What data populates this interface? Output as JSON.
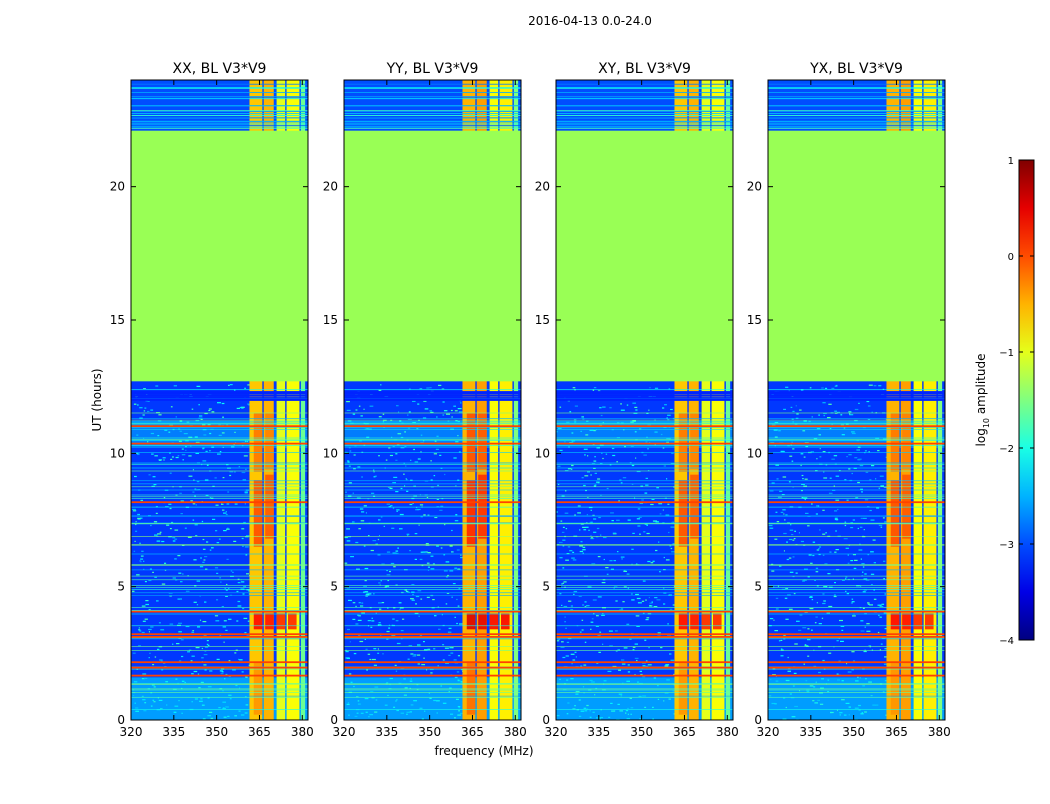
{
  "figure": {
    "suptitle": "2016-04-13 0.0-24.0",
    "xlabel": "frequency (MHz)",
    "ylabel": "UT (hours)"
  },
  "colors": {
    "flagged": "#99ff55",
    "background_noise": "#1a3cff",
    "rfi_strong": "#ff7a10"
  },
  "chart_data": {
    "type": "heatmap",
    "title": "2016-04-13 0.0-24.0",
    "xlabel": "frequency (MHz)",
    "ylabel": "UT (hours)",
    "xlim": [
      320,
      382
    ],
    "ylim": [
      0,
      24
    ],
    "xticks": [
      320,
      335,
      350,
      365,
      380
    ],
    "yticks": [
      0,
      5,
      10,
      15,
      20
    ],
    "panels": [
      {
        "title": "XX, BL V3*V9",
        "polarization": "XX"
      },
      {
        "title": "YY, BL V3*V9",
        "polarization": "YY"
      },
      {
        "title": "XY, BL V3*V9",
        "polarization": "XY"
      },
      {
        "title": "YX, BL V3*V9",
        "polarization": "YX"
      }
    ],
    "flagged_time_range": [
      12.7,
      22.1
    ],
    "rfi_band_range": [
      361.5,
      381
    ],
    "colorbar": {
      "label": "log10 amplitude",
      "label_main": "log",
      "label_sub": "10",
      "label_rest": " amplitude",
      "range": [
        -4,
        1
      ],
      "ticks": [
        1,
        0,
        -1,
        -2,
        -3,
        -4
      ],
      "tick_labels": [
        "1",
        "0",
        "−1",
        "−2",
        "−3",
        "−4"
      ]
    }
  }
}
